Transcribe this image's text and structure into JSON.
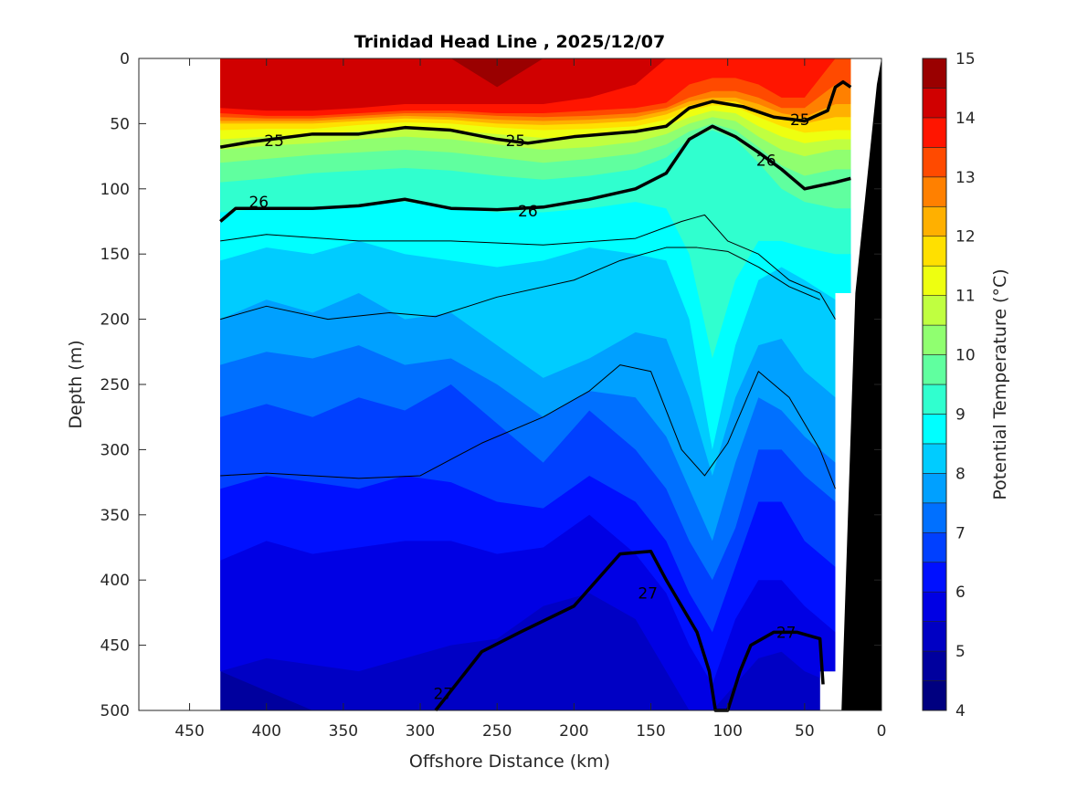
{
  "chart_data": {
    "type": "contourf",
    "title": "Trinidad Head Line , 2025/12/07",
    "xlabel": "Offshore Distance (km)",
    "ylabel": "Depth (m)",
    "colorbar_label": "Potential Temperature (°C)",
    "xlim": [
      483,
      0
    ],
    "ylim": [
      500,
      0
    ],
    "x_reversed": true,
    "y_reversed": true,
    "xticks": [
      450,
      400,
      350,
      300,
      250,
      200,
      150,
      100,
      50,
      0
    ],
    "yticks": [
      0,
      50,
      100,
      150,
      200,
      250,
      300,
      350,
      400,
      450,
      500
    ],
    "colorbar_ticks": [
      4,
      5,
      6,
      7,
      8,
      9,
      10,
      11,
      12,
      13,
      14,
      15
    ],
    "levels": [
      4,
      4.5,
      5,
      5.5,
      6,
      6.5,
      7,
      7.5,
      8,
      8.5,
      9,
      9.5,
      10,
      10.5,
      11,
      11.5,
      12,
      12.5,
      13,
      13.5,
      14,
      14.5,
      15
    ],
    "colors": [
      "#000080",
      "#00009e",
      "#0000c4",
      "#0000e4",
      "#0010ff",
      "#0040ff",
      "#0070ff",
      "#00a0ff",
      "#00ccff",
      "#00ffff",
      "#30ffcf",
      "#60ff9f",
      "#90ff70",
      "#c0ff40",
      "#eeff10",
      "#ffe000",
      "#ffb000",
      "#ff8000",
      "#ff4a00",
      "#ff1500",
      "#d00000",
      "#9a0000"
    ],
    "distance_km": [
      430,
      400,
      370,
      340,
      310,
      280,
      250,
      220,
      190,
      160,
      140,
      125,
      110,
      95,
      80,
      65,
      50,
      30
    ],
    "isotherm_depths_m": {
      "5": [
        470,
        485,
        500,
        500,
        500,
        500,
        500,
        500,
        500,
        500,
        500,
        500,
        500,
        500,
        500,
        500,
        500,
        500
      ],
      "5.5": [
        470,
        460,
        465,
        470,
        460,
        450,
        445,
        420,
        410,
        430,
        470,
        500,
        500,
        480,
        460,
        455,
        470,
        480
      ],
      "6": [
        385,
        370,
        380,
        375,
        370,
        370,
        380,
        375,
        350,
        380,
        410,
        450,
        480,
        430,
        400,
        400,
        420,
        440
      ],
      "6.5": [
        330,
        320,
        325,
        330,
        320,
        325,
        340,
        345,
        320,
        340,
        370,
        410,
        440,
        390,
        340,
        340,
        370,
        390
      ],
      "7": [
        275,
        265,
        275,
        260,
        270,
        250,
        280,
        310,
        270,
        300,
        330,
        370,
        400,
        360,
        300,
        300,
        320,
        340
      ],
      "7.5": [
        235,
        225,
        230,
        220,
        235,
        230,
        250,
        275,
        255,
        260,
        290,
        330,
        370,
        310,
        260,
        270,
        290,
        310
      ],
      "8": [
        200,
        185,
        195,
        180,
        200,
        195,
        220,
        245,
        230,
        210,
        215,
        260,
        320,
        260,
        220,
        215,
        240,
        260
      ],
      "8.5": [
        155,
        145,
        150,
        140,
        150,
        155,
        160,
        155,
        145,
        150,
        155,
        200,
        300,
        220,
        170,
        160,
        170,
        185
      ],
      "9": [
        118,
        115,
        115,
        112,
        110,
        115,
        118,
        118,
        115,
        110,
        115,
        150,
        230,
        170,
        140,
        140,
        145,
        150
      ],
      "9.5": [
        95,
        92,
        88,
        86,
        84,
        86,
        90,
        93,
        90,
        85,
        76,
        62,
        55,
        62,
        80,
        100,
        110,
        115
      ],
      "10": [
        80,
        77,
        74,
        72,
        70,
        72,
        76,
        80,
        77,
        73,
        66,
        56,
        50,
        55,
        68,
        82,
        90,
        85
      ],
      "10.5": [
        70,
        67,
        65,
        62,
        60,
        62,
        66,
        70,
        68,
        64,
        58,
        50,
        45,
        48,
        60,
        70,
        75,
        70
      ],
      "11": [
        62,
        60,
        58,
        56,
        54,
        55,
        58,
        61,
        60,
        57,
        52,
        45,
        40,
        42,
        52,
        60,
        65,
        62
      ],
      "11.5": [
        55,
        54,
        54,
        51,
        49,
        50,
        53,
        55,
        54,
        52,
        47,
        40,
        36,
        37,
        45,
        52,
        57,
        55
      ],
      "12": [
        50,
        50,
        50,
        48,
        46,
        47,
        50,
        51,
        50,
        48,
        43,
        36,
        33,
        33,
        40,
        46,
        50,
        45
      ],
      "12.5": [
        48,
        48,
        48,
        46,
        44,
        45,
        47,
        48,
        47,
        45,
        40,
        33,
        30,
        30,
        35,
        42,
        45,
        35
      ],
      "13": [
        45,
        46,
        46,
        44,
        42,
        42,
        44,
        45,
        44,
        42,
        38,
        30,
        25,
        25,
        30,
        38,
        38,
        20
      ],
      "13.5": [
        42,
        44,
        44,
        42,
        40,
        40,
        42,
        42,
        40,
        38,
        34,
        20,
        15,
        15,
        20,
        30,
        30,
        0
      ],
      "14": [
        38,
        40,
        40,
        38,
        35,
        35,
        35,
        35,
        30,
        20,
        0,
        0,
        0,
        0,
        0,
        0,
        0,
        0
      ],
      "14.5": [
        0,
        0,
        0,
        0,
        0,
        0,
        22,
        0,
        0,
        0,
        0,
        0,
        0,
        0,
        0,
        0,
        0,
        0
      ]
    },
    "density_contours": [
      {
        "label": "25",
        "bold": true,
        "points": [
          [
            430,
            68
          ],
          [
            410,
            64
          ],
          [
            370,
            58
          ],
          [
            340,
            58
          ],
          [
            310,
            53
          ],
          [
            280,
            55
          ],
          [
            250,
            62
          ],
          [
            230,
            65
          ],
          [
            200,
            60
          ],
          [
            160,
            56
          ],
          [
            140,
            52
          ],
          [
            125,
            38
          ],
          [
            110,
            33
          ],
          [
            90,
            37
          ],
          [
            70,
            45
          ],
          [
            50,
            48
          ],
          [
            35,
            40
          ],
          [
            30,
            22
          ],
          [
            25,
            18
          ],
          [
            20,
            22
          ]
        ],
        "label_at": [
          [
            395,
            63
          ],
          [
            238,
            63
          ],
          [
            53,
            47
          ]
        ]
      },
      {
        "label": "26",
        "bold": true,
        "points": [
          [
            430,
            125
          ],
          [
            420,
            115
          ],
          [
            400,
            115
          ],
          [
            370,
            115
          ],
          [
            340,
            113
          ],
          [
            310,
            108
          ],
          [
            280,
            115
          ],
          [
            250,
            116
          ],
          [
            220,
            114
          ],
          [
            190,
            108
          ],
          [
            160,
            100
          ],
          [
            140,
            88
          ],
          [
            125,
            62
          ],
          [
            110,
            52
          ],
          [
            95,
            60
          ],
          [
            80,
            72
          ],
          [
            65,
            85
          ],
          [
            50,
            100
          ],
          [
            30,
            95
          ],
          [
            20,
            92
          ]
        ],
        "label_at": [
          [
            405,
            110
          ],
          [
            230,
            117
          ],
          [
            75,
            78
          ]
        ]
      },
      {
        "label": "27",
        "bold": true,
        "points": [
          [
            290,
            500
          ],
          [
            260,
            455
          ],
          [
            235,
            440
          ],
          [
            200,
            420
          ],
          [
            185,
            400
          ],
          [
            170,
            380
          ],
          [
            150,
            378
          ],
          [
            140,
            400
          ],
          [
            120,
            440
          ],
          [
            112,
            470
          ],
          [
            108,
            500
          ],
          [
            100,
            500
          ],
          [
            92,
            470
          ],
          [
            85,
            450
          ],
          [
            70,
            440
          ],
          [
            55,
            440
          ],
          [
            40,
            445
          ],
          [
            38,
            480
          ]
        ],
        "label_at": [
          [
            285,
            487
          ],
          [
            152,
            410
          ],
          [
            62,
            440
          ]
        ]
      },
      {
        "label": "",
        "bold": false,
        "points": [
          [
            430,
            140
          ],
          [
            400,
            135
          ],
          [
            340,
            140
          ],
          [
            280,
            140
          ],
          [
            220,
            143
          ],
          [
            160,
            138
          ],
          [
            130,
            125
          ],
          [
            115,
            120
          ],
          [
            100,
            140
          ],
          [
            80,
            150
          ],
          [
            60,
            170
          ],
          [
            40,
            180
          ],
          [
            30,
            200
          ]
        ],
        "label_at": []
      },
      {
        "label": "",
        "bold": false,
        "points": [
          [
            430,
            200
          ],
          [
            400,
            190
          ],
          [
            360,
            200
          ],
          [
            320,
            195
          ],
          [
            290,
            198
          ],
          [
            250,
            183
          ],
          [
            200,
            170
          ],
          [
            170,
            155
          ],
          [
            140,
            145
          ],
          [
            120,
            145
          ],
          [
            100,
            148
          ],
          [
            80,
            160
          ],
          [
            60,
            175
          ],
          [
            40,
            185
          ]
        ],
        "label_at": []
      },
      {
        "label": "",
        "bold": false,
        "points": [
          [
            430,
            320
          ],
          [
            400,
            318
          ],
          [
            340,
            322
          ],
          [
            300,
            320
          ],
          [
            260,
            295
          ],
          [
            220,
            275
          ],
          [
            190,
            255
          ],
          [
            170,
            235
          ],
          [
            150,
            240
          ],
          [
            130,
            300
          ],
          [
            115,
            320
          ],
          [
            100,
            295
          ],
          [
            80,
            240
          ],
          [
            60,
            260
          ],
          [
            40,
            300
          ],
          [
            30,
            330
          ]
        ],
        "label_at": []
      }
    ]
  }
}
